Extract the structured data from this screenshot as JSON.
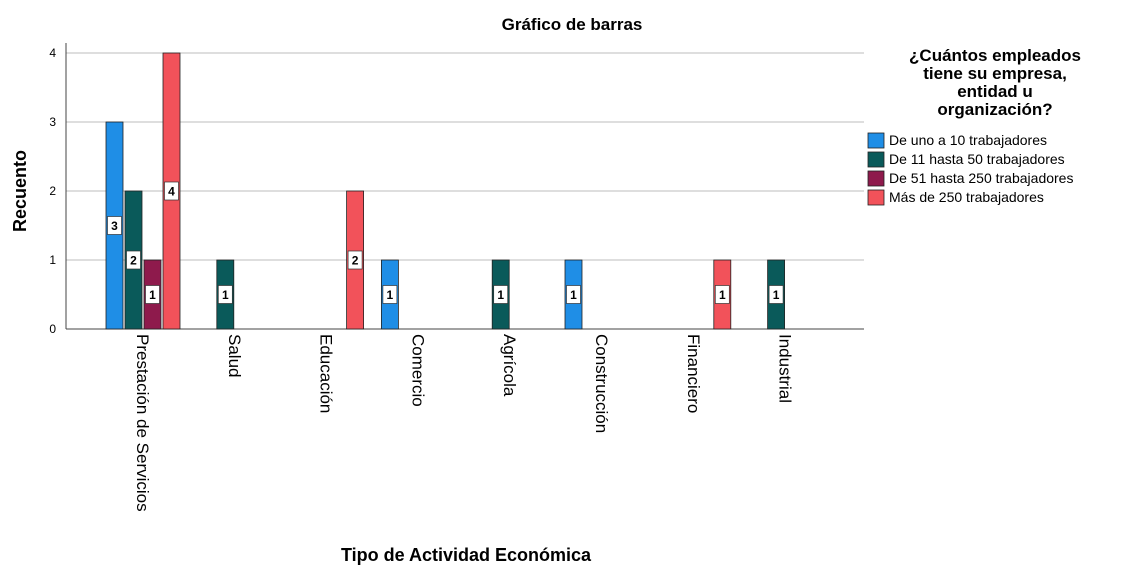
{
  "chart_data": {
    "type": "bar",
    "title": "Gráfico de barras",
    "xlabel": "Tipo de Actividad Económica",
    "ylabel": "Recuento",
    "ylim": [
      0,
      4
    ],
    "yticks": [
      "0",
      "1",
      "2",
      "3",
      "4"
    ],
    "grid": true,
    "legend_placement": "right",
    "legend_title": [
      "¿Cuántos empleados",
      "tiene su empresa,",
      "entidad u",
      "organización?"
    ],
    "categories": [
      "Prestación de Servicios",
      "Salud",
      "Educación",
      "Comercio",
      "Agrícola",
      "Construcción",
      "Financiero",
      "Industrial"
    ],
    "series": [
      {
        "name": "De uno a 10 trabajadores",
        "color": "#1f8ee6",
        "values": [
          3,
          null,
          null,
          1,
          null,
          1,
          null,
          null
        ]
      },
      {
        "name": "De 11 hasta 50 trabajadores",
        "color": "#0a5a5a",
        "values": [
          2,
          1,
          null,
          null,
          1,
          null,
          null,
          1
        ]
      },
      {
        "name": "De 51 hasta 250 trabajadores",
        "color": "#8e1a4c",
        "values": [
          1,
          null,
          null,
          null,
          null,
          null,
          null,
          null
        ]
      },
      {
        "name": "Más de 250 trabajadores",
        "color": "#f2525a",
        "values": [
          4,
          null,
          2,
          null,
          null,
          null,
          1,
          null
        ]
      }
    ]
  }
}
